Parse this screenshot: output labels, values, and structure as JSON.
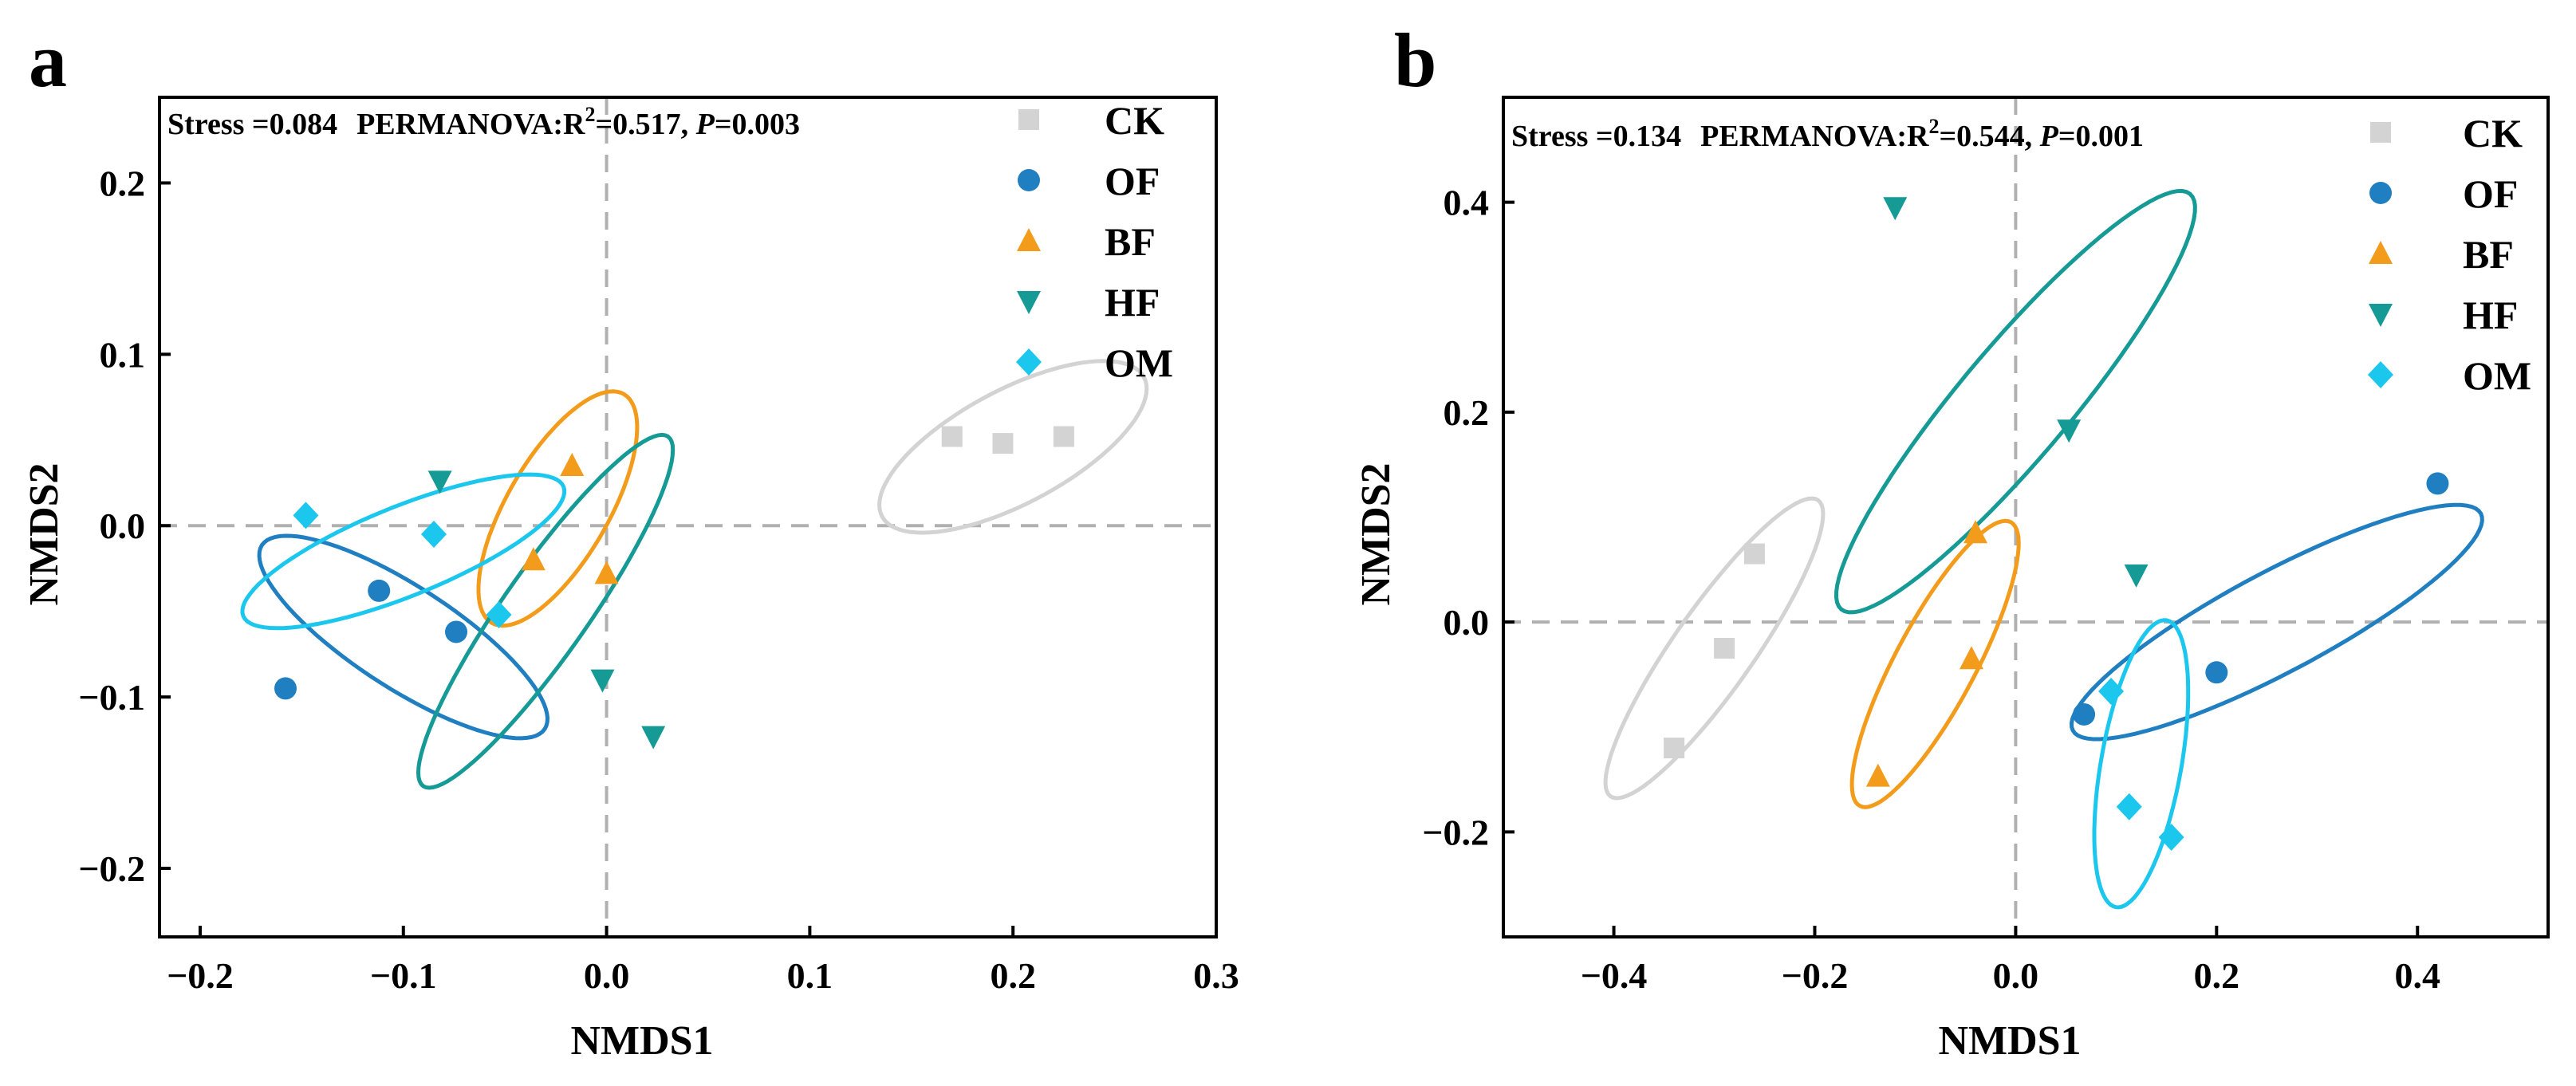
{
  "colors": {
    "CK": "#d3d3d3",
    "OF": "#1f7fc0",
    "BF": "#f39c1c",
    "HF": "#159a96",
    "OM": "#1cc7ee",
    "zero_line": "#b0b0b0",
    "axis": "#000000"
  },
  "chart_data": [
    {
      "type": "scatter",
      "panel_label": "a",
      "xlabel": "NMDS1",
      "ylabel": "NMDS2",
      "xlim": [
        -0.22,
        0.3
      ],
      "ylim": [
        -0.24,
        0.25
      ],
      "xticks": [
        -0.2,
        -0.1,
        0.0,
        0.1,
        0.2,
        0.3
      ],
      "xtick_labels": [
        "−0.2",
        "−0.1",
        "0.0",
        "0.1",
        "0.2",
        "0.3"
      ],
      "yticks": [
        -0.2,
        -0.1,
        0.0,
        0.1,
        0.2
      ],
      "ytick_labels": [
        "−0.2",
        "−0.1",
        "0.0",
        "0.1",
        "0.2"
      ],
      "stats": {
        "stress": "Stress =0.084",
        "permanova": "PERMANOVA:R",
        "sup": "2",
        "r2": "=0.517, ",
        "p_italic": "P",
        "p_value": "=0.003"
      },
      "legend_position": "top-right",
      "series": [
        {
          "name": "CK",
          "marker": "square",
          "points": [
            [
              0.17,
              0.052
            ],
            [
              0.195,
              0.048
            ],
            [
              0.225,
              0.052
            ]
          ],
          "ellipse": {
            "cx": 0.2,
            "cy": 0.046,
            "rx": 0.073,
            "ry": 0.028,
            "angle_deg": -28
          }
        },
        {
          "name": "OF",
          "marker": "circle",
          "points": [
            [
              -0.158,
              -0.095
            ],
            [
              -0.112,
              -0.038
            ],
            [
              -0.074,
              -0.062
            ]
          ],
          "ellipse": {
            "cx": -0.1,
            "cy": -0.065,
            "rx": 0.083,
            "ry": 0.025,
            "angle_deg": 33
          }
        },
        {
          "name": "BF",
          "marker": "triangle-up",
          "points": [
            [
              -0.017,
              0.035
            ],
            [
              -0.036,
              -0.02
            ],
            [
              0.0,
              -0.028
            ]
          ],
          "ellipse": {
            "cx": -0.024,
            "cy": 0.01,
            "rx": 0.065,
            "ry": 0.025,
            "angle_deg": -60
          }
        },
        {
          "name": "HF",
          "marker": "triangle-down",
          "points": [
            [
              -0.082,
              0.026
            ],
            [
              -0.002,
              -0.09
            ],
            [
              0.023,
              -0.123
            ]
          ],
          "ellipse": {
            "cx": -0.03,
            "cy": -0.05,
            "rx": 0.105,
            "ry": 0.021,
            "angle_deg": -55
          }
        },
        {
          "name": "OM",
          "marker": "diamond",
          "points": [
            [
              -0.148,
              0.006
            ],
            [
              -0.085,
              -0.005
            ],
            [
              -0.053,
              -0.052
            ]
          ],
          "ellipse": {
            "cx": -0.1,
            "cy": -0.015,
            "rx": 0.085,
            "ry": 0.022,
            "angle_deg": -22
          }
        }
      ]
    },
    {
      "type": "scatter",
      "panel_label": "b",
      "xlabel": "NMDS1",
      "ylabel": "NMDS2",
      "xlim": [
        -0.51,
        0.53
      ],
      "ylim": [
        -0.3,
        0.5
      ],
      "xticks": [
        -0.4,
        -0.2,
        0.0,
        0.2,
        0.4
      ],
      "xtick_labels": [
        "−0.4",
        "−0.2",
        "0.0",
        "0.2",
        "0.4"
      ],
      "yticks": [
        -0.2,
        0.0,
        0.2,
        0.4
      ],
      "ytick_labels": [
        "−0.2",
        "0.0",
        "0.2",
        "0.4"
      ],
      "stats": {
        "stress": "Stress =0.134",
        "permanova": "PERMANOVA:R",
        "sup": "2",
        "r2": "=0.544, ",
        "p_italic": "P",
        "p_value": "=0.001"
      },
      "legend_position": "top-right",
      "series": [
        {
          "name": "CK",
          "marker": "square",
          "points": [
            [
              -0.26,
              0.065
            ],
            [
              -0.29,
              -0.025
            ],
            [
              -0.34,
              -0.12
            ]
          ],
          "ellipse": {
            "cx": -0.3,
            "cy": -0.025,
            "rx": 0.18,
            "ry": 0.04,
            "angle_deg": -55
          }
        },
        {
          "name": "OF",
          "marker": "circle",
          "points": [
            [
              0.068,
              -0.088
            ],
            [
              0.2,
              -0.048
            ],
            [
              0.42,
              0.132
            ]
          ],
          "ellipse": {
            "cx": 0.26,
            "cy": 0.0,
            "rx": 0.23,
            "ry": 0.05,
            "angle_deg": -28
          }
        },
        {
          "name": "BF",
          "marker": "triangle-up",
          "points": [
            [
              -0.04,
              0.085
            ],
            [
              -0.044,
              -0.035
            ],
            [
              -0.137,
              -0.147
            ]
          ],
          "ellipse": {
            "cx": -0.08,
            "cy": -0.04,
            "rx": 0.16,
            "ry": 0.04,
            "angle_deg": -62
          }
        },
        {
          "name": "HF",
          "marker": "triangle-down",
          "points": [
            [
              -0.12,
              0.395
            ],
            [
              0.053,
              0.183
            ],
            [
              0.12,
              0.045
            ]
          ],
          "ellipse": {
            "cx": 0.0,
            "cy": 0.21,
            "rx": 0.27,
            "ry": 0.055,
            "angle_deg": -50
          }
        },
        {
          "name": "OM",
          "marker": "diamond",
          "points": [
            [
              0.095,
              -0.066
            ],
            [
              0.113,
              -0.176
            ],
            [
              0.155,
              -0.205
            ]
          ],
          "ellipse": {
            "cx": 0.125,
            "cy": -0.135,
            "rx": 0.145,
            "ry": 0.04,
            "angle_deg": -80
          }
        }
      ]
    }
  ]
}
